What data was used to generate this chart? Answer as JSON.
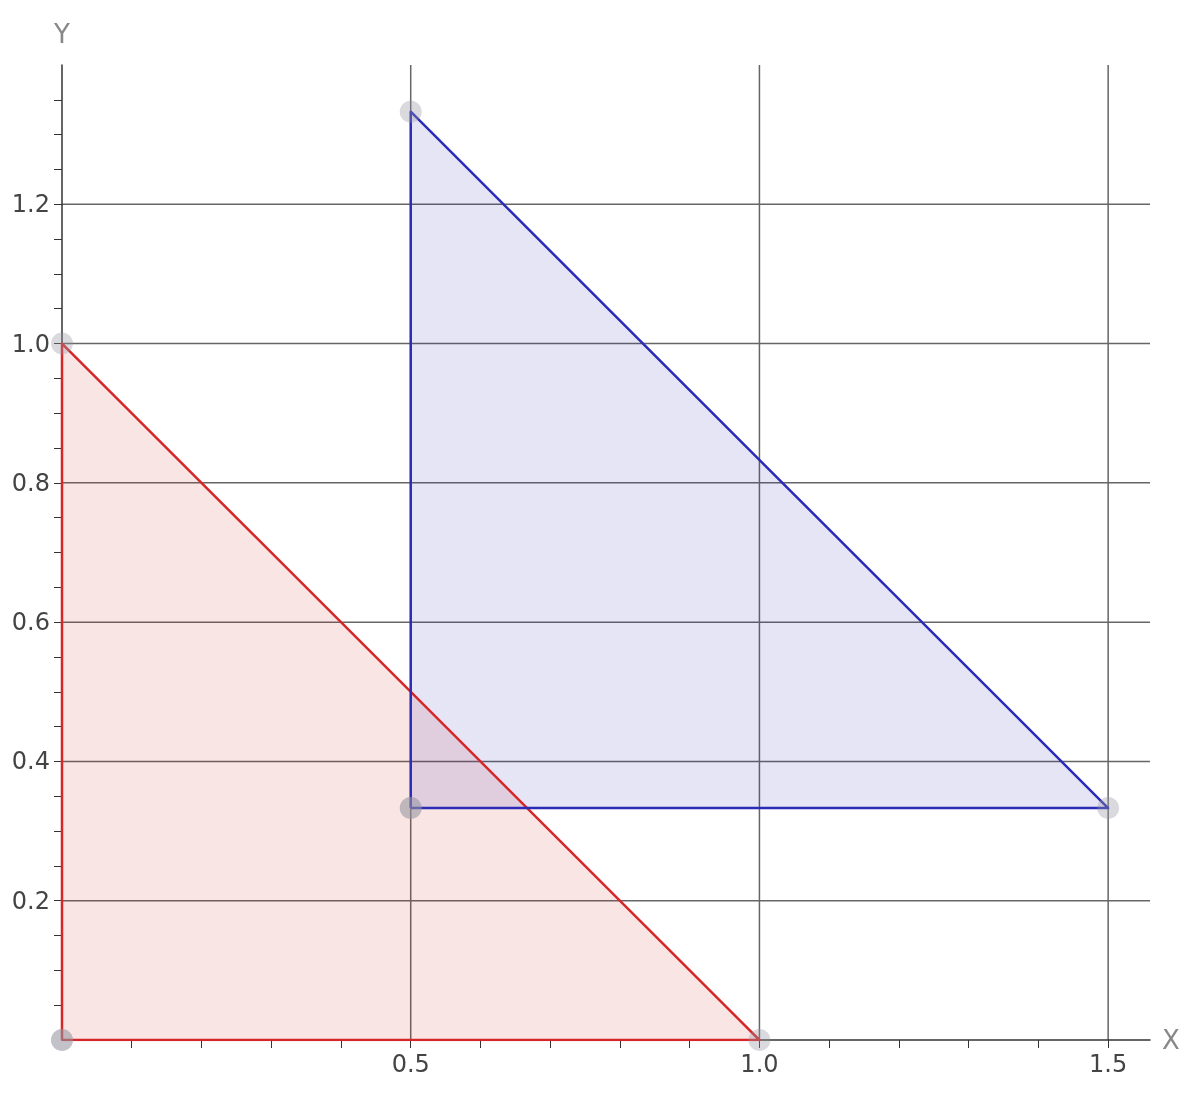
{
  "chart_data": {
    "type": "area",
    "xlabel": "X",
    "ylabel": "Y",
    "marker": "circle",
    "grid": true,
    "series": [
      {
        "color": "#d62728",
        "x": [
          0,
          0,
          1
        ],
        "values": [
          0,
          1,
          0
        ]
      },
      {
        "color": "#2b2bb8",
        "x": [
          0.5,
          0.5,
          1.5
        ],
        "values": [
          0.333,
          1.333,
          0.333
        ]
      }
    ],
    "xlim": [
      0,
      1.56
    ],
    "ylim": [
      0,
      1.4
    ],
    "xticks": [
      {
        "value": 0.1,
        "label": null
      },
      {
        "value": 0.2,
        "label": null
      },
      {
        "value": 0.3,
        "label": null
      },
      {
        "value": 0.4,
        "label": null
      },
      {
        "value": 0.5,
        "label": "0.5"
      },
      {
        "value": 0.6,
        "label": null
      },
      {
        "value": 0.7,
        "label": null
      },
      {
        "value": 0.8,
        "label": null
      },
      {
        "value": 0.9,
        "label": null
      },
      {
        "value": 1,
        "label": "1.0"
      },
      {
        "value": 1.1,
        "label": null
      },
      {
        "value": 1.2,
        "label": null
      },
      {
        "value": 1.3,
        "label": null
      },
      {
        "value": 1.4,
        "label": null
      },
      {
        "value": 1.5,
        "label": "1.5"
      }
    ],
    "yticks": [
      {
        "value": 0.05,
        "label": null
      },
      {
        "value": 0.1,
        "label": null
      },
      {
        "value": 0.15,
        "label": null
      },
      {
        "value": 0.2,
        "label": "0.2"
      },
      {
        "value": 0.25,
        "label": null
      },
      {
        "value": 0.3,
        "label": null
      },
      {
        "value": 0.35,
        "label": null
      },
      {
        "value": 0.4,
        "label": "0.4"
      },
      {
        "value": 0.45,
        "label": null
      },
      {
        "value": 0.5,
        "label": null
      },
      {
        "value": 0.55,
        "label": null
      },
      {
        "value": 0.6,
        "label": "0.6"
      },
      {
        "value": 0.65,
        "label": null
      },
      {
        "value": 0.7,
        "label": null
      },
      {
        "value": 0.75,
        "label": null
      },
      {
        "value": 0.8,
        "label": "0.8"
      },
      {
        "value": 0.85,
        "label": null
      },
      {
        "value": 0.9,
        "label": null
      },
      {
        "value": 0.95,
        "label": null
      },
      {
        "value": 1,
        "label": "1.0"
      },
      {
        "value": 1.05,
        "label": null
      },
      {
        "value": 1.1,
        "label": null
      },
      {
        "value": 1.15,
        "label": null
      },
      {
        "value": 1.2,
        "label": "1.2"
      },
      {
        "value": 1.25,
        "label": null
      },
      {
        "value": 1.3,
        "label": null
      },
      {
        "value": 1.35,
        "label": null
      }
    ]
  }
}
